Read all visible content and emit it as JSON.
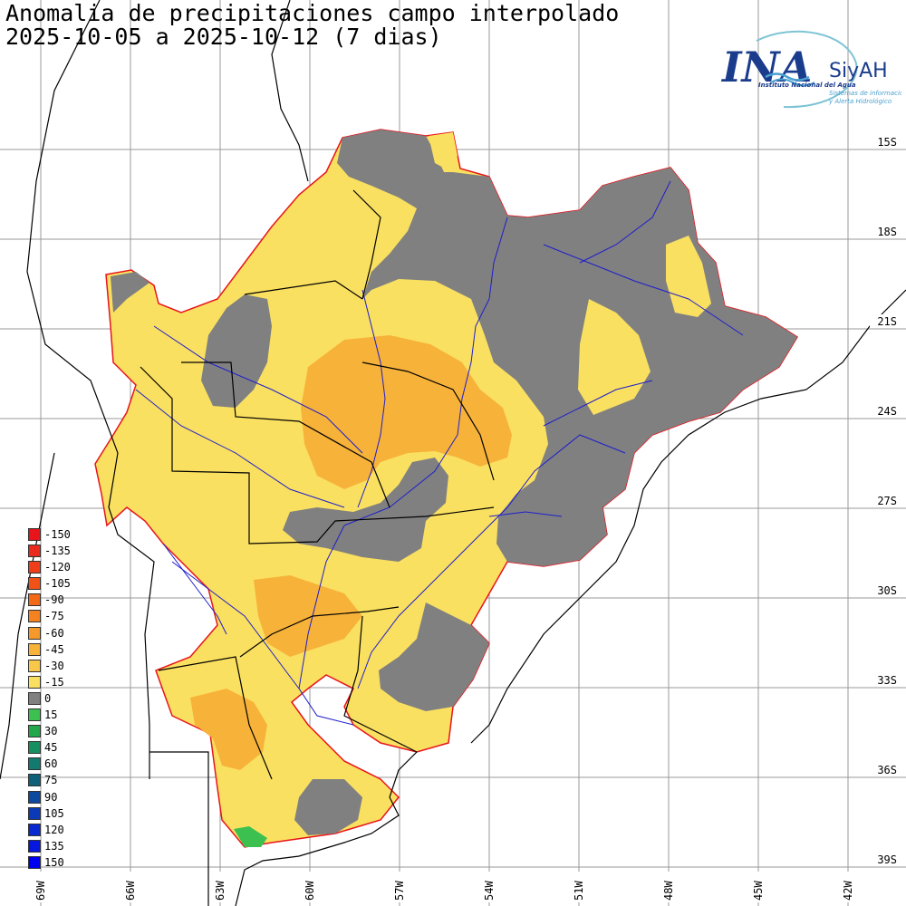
{
  "header": {
    "title": "Anomalia de precipitaciones campo interpolado",
    "subtitle": "2025-10-05 a 2025-10-12 (7 dias)"
  },
  "logo": {
    "mark": "INA",
    "name": "SiyAH",
    "line1": "Instituto Nacional del Agua",
    "line2": "Sistemas de información",
    "line3": "y Alerta Hidrológico"
  },
  "latitude_labels": [
    "15S",
    "18S",
    "21S",
    "24S",
    "27S",
    "30S",
    "33S",
    "36S",
    "39S"
  ],
  "longitude_labels": [
    "69W",
    "66W",
    "63W",
    "60W",
    "57W",
    "54W",
    "51W",
    "48W",
    "45W",
    "42W"
  ],
  "legend": [
    {
      "label": "-150",
      "color": "#e8141c"
    },
    {
      "label": "-135",
      "color": "#ea2a1c"
    },
    {
      "label": "-120",
      "color": "#ee3e1a"
    },
    {
      "label": "-105",
      "color": "#f05218"
    },
    {
      "label": "-90",
      "color": "#f26a18"
    },
    {
      "label": "-75",
      "color": "#f48220"
    },
    {
      "label": "-60",
      "color": "#f59a2a"
    },
    {
      "label": "-45",
      "color": "#f7b23a"
    },
    {
      "label": "-30",
      "color": "#f8c84a"
    },
    {
      "label": "-15",
      "color": "#fae060"
    },
    {
      "label": "0",
      "color": "#808080"
    },
    {
      "label": "15",
      "color": "#3cc050"
    },
    {
      "label": "30",
      "color": "#22a84a"
    },
    {
      "label": "45",
      "color": "#169060"
    },
    {
      "label": "60",
      "color": "#127a70"
    },
    {
      "label": "75",
      "color": "#10607a"
    },
    {
      "label": "90",
      "color": "#0c4aa0"
    },
    {
      "label": "105",
      "color": "#0a3ab8"
    },
    {
      "label": "120",
      "color": "#0828d0"
    },
    {
      "label": "135",
      "color": "#0618e0"
    },
    {
      "label": "150",
      "color": "#0000f0"
    }
  ]
}
